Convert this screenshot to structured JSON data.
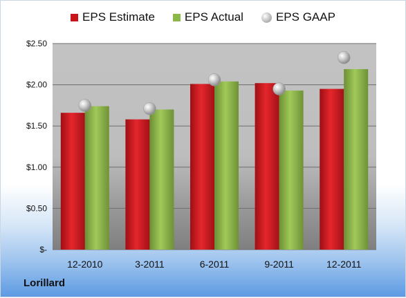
{
  "legend": {
    "estimate": "EPS Estimate",
    "actual": "EPS Actual",
    "gaap": "EPS GAAP"
  },
  "footer_label": "Lorillard",
  "colors": {
    "estimate": "#c8151b",
    "actual": "#8cb847",
    "gaap": "#b5b5b5"
  },
  "chart_data": {
    "type": "bar",
    "categories": [
      "12-2010",
      "3-2011",
      "6-2011",
      "9-2011",
      "12-2011"
    ],
    "series": [
      {
        "name": "EPS Estimate",
        "values": [
          1.66,
          1.58,
          2.01,
          2.02,
          1.95
        ]
      },
      {
        "name": "EPS Actual",
        "values": [
          1.74,
          1.7,
          2.04,
          1.93,
          2.19
        ]
      },
      {
        "name": "EPS GAAP",
        "values": [
          1.75,
          1.71,
          2.06,
          1.95,
          2.33
        ]
      }
    ],
    "ylim": [
      0,
      2.5
    ],
    "yticks": [
      0,
      0.5,
      1.0,
      1.5,
      2.0,
      2.5
    ],
    "ytick_labels": [
      "$-",
      "$0.50",
      "$1.00",
      "$1.50",
      "$2.00",
      "$2.50"
    ],
    "grid": true,
    "legend_position": "top"
  }
}
